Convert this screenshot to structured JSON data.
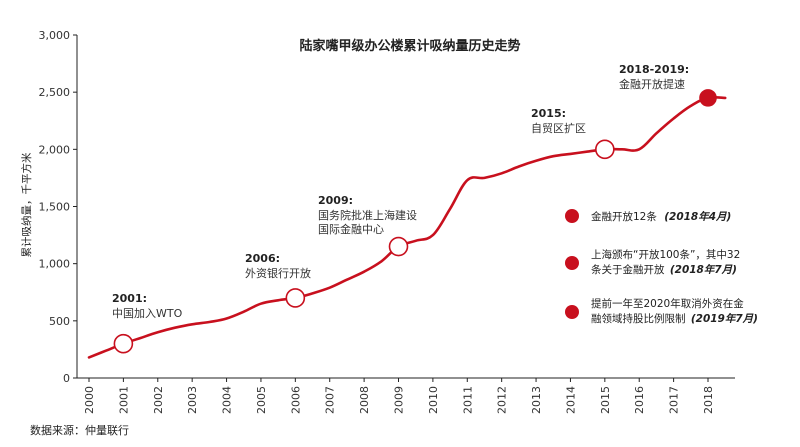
{
  "chart_data": {
    "type": "line",
    "title": "陆家嘴甲级办公楼累计吸纳量历史走势",
    "ylabel": "累计吸纳量，千平方米",
    "xlabel": "",
    "ylim": [
      0,
      3000
    ],
    "yticks": [
      "0",
      "500",
      "1,000",
      "1,500",
      "2,000",
      "2,500",
      "3,000"
    ],
    "x": [
      "2000",
      "2001",
      "2002",
      "2003",
      "2004",
      "2005",
      "2006",
      "2007",
      "2008",
      "2009",
      "2010",
      "2011",
      "2012",
      "2013",
      "2014",
      "2015",
      "2016",
      "2017",
      "2018"
    ],
    "series": [
      {
        "color": "#c8101e",
        "points": [
          [
            2000.0,
            180
          ],
          [
            2000.5,
            240
          ],
          [
            2001.0,
            300
          ],
          [
            2001.5,
            350
          ],
          [
            2002.0,
            400
          ],
          [
            2002.5,
            440
          ],
          [
            2003.0,
            470
          ],
          [
            2003.5,
            490
          ],
          [
            2004.0,
            520
          ],
          [
            2004.5,
            580
          ],
          [
            2005.0,
            650
          ],
          [
            2005.5,
            680
          ],
          [
            2006.0,
            700
          ],
          [
            2006.5,
            740
          ],
          [
            2007.0,
            790
          ],
          [
            2007.5,
            860
          ],
          [
            2008.0,
            930
          ],
          [
            2008.5,
            1020
          ],
          [
            2009.0,
            1150
          ],
          [
            2009.5,
            1200
          ],
          [
            2010.0,
            1250
          ],
          [
            2010.5,
            1480
          ],
          [
            2011.0,
            1730
          ],
          [
            2011.5,
            1750
          ],
          [
            2012.0,
            1790
          ],
          [
            2012.5,
            1850
          ],
          [
            2013.0,
            1900
          ],
          [
            2013.5,
            1940
          ],
          [
            2014.0,
            1960
          ],
          [
            2014.5,
            1980
          ],
          [
            2015.0,
            2000
          ],
          [
            2015.5,
            2000
          ],
          [
            2016.0,
            2000
          ],
          [
            2016.5,
            2140
          ],
          [
            2017.0,
            2270
          ],
          [
            2017.5,
            2380
          ],
          [
            2018.0,
            2450
          ],
          [
            2018.5,
            2450
          ]
        ]
      }
    ],
    "markers": [
      {
        "x": 2001.0,
        "y": 300,
        "style": "open"
      },
      {
        "x": 2006.0,
        "y": 700,
        "style": "open"
      },
      {
        "x": 2009.0,
        "y": 1150,
        "style": "open"
      },
      {
        "x": 2015.0,
        "y": 2000,
        "style": "open"
      },
      {
        "x": 2018.0,
        "y": 2450,
        "style": "filled"
      }
    ],
    "annotations": [
      {
        "year": "2001:",
        "lines": [
          "中国加入WTO"
        ]
      },
      {
        "year": "2006:",
        "lines": [
          "外资银行开放"
        ]
      },
      {
        "year": "2009:",
        "lines": [
          "国务院批准上海建设",
          "国际金融中心"
        ]
      },
      {
        "year": "2015:",
        "lines": [
          "自贸区扩区"
        ]
      },
      {
        "year": "2018-2019:",
        "lines": [
          "金融开放提速"
        ]
      }
    ],
    "legend": [
      {
        "text": "金融开放12条",
        "date": "(2018年4月)"
      },
      {
        "text": "上海颁布“开放100条”，其中32",
        "text2": "条关于金融开放",
        "date": "(2018年7月)"
      },
      {
        "text": "提前一年至2020年取消外资在金",
        "text2": "融领域持股比例限制",
        "date": "(2019年7月)"
      }
    ],
    "grid": false,
    "legend_placement": "right"
  },
  "source": "数据来源：仲量联行",
  "colors": {
    "line": "#c8101e",
    "axis": "#222222"
  }
}
